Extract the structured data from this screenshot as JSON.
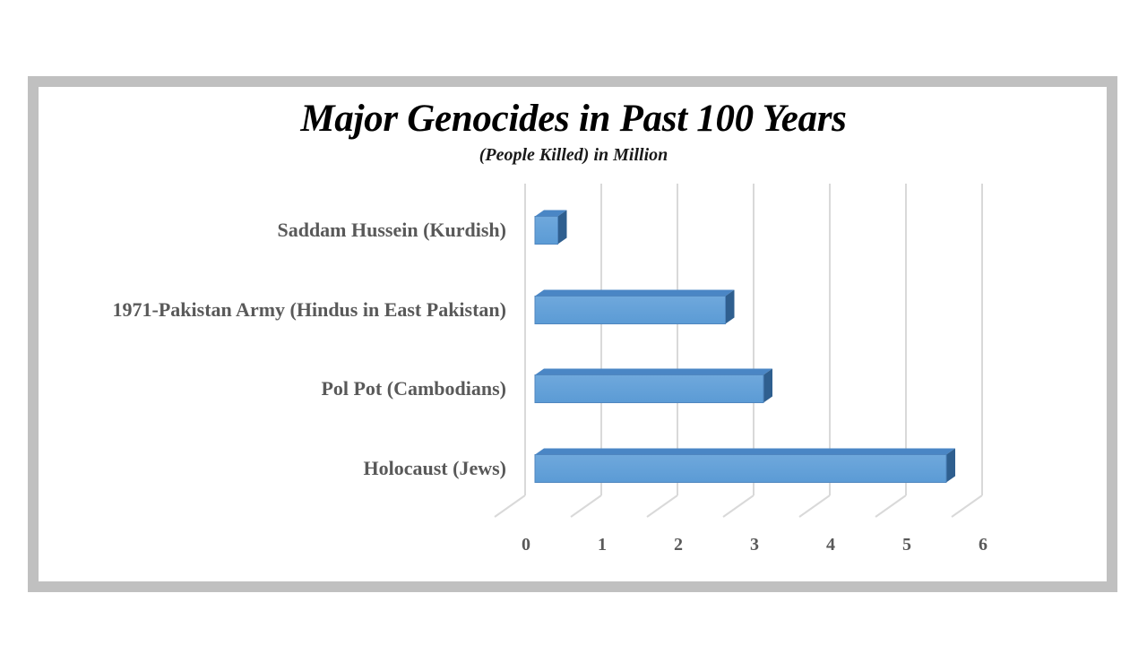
{
  "chart_data": {
    "type": "bar",
    "orientation": "horizontal",
    "title": "Major Genocides in Past 100 Years",
    "subtitle": "(People Killed) in Million",
    "categories": [
      "Saddam Hussein (Kurdish)",
      "1971-Pakistan Army (Hindus in East Pakistan)",
      "Pol Pot (Cambodians)",
      "Holocaust (Jews)"
    ],
    "values": [
      0.3,
      2.5,
      3,
      5.4
    ],
    "xlim": [
      0,
      6
    ],
    "xticks": [
      "0",
      "1",
      "2",
      "3",
      "4",
      "5",
      "6"
    ],
    "xlabel": "",
    "ylabel": "",
    "grid": true,
    "bar_color": "#5b9bd5",
    "style": "3d"
  }
}
